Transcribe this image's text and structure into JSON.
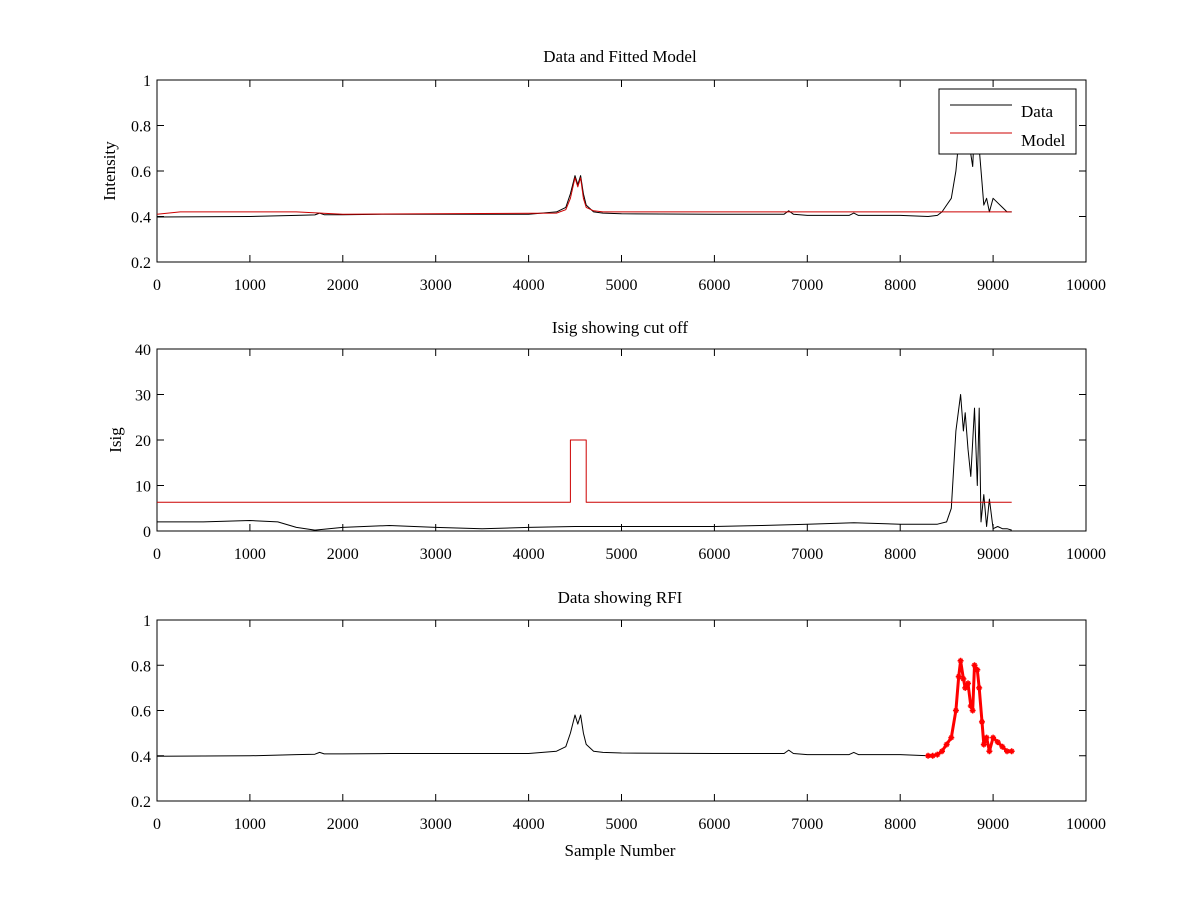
{
  "chart_data": [
    {
      "type": "line",
      "title": "Data and Fitted Model",
      "xlabel": "",
      "ylabel": "Intensity",
      "xlim": [
        0,
        10000
      ],
      "ylim": [
        0.2,
        1
      ],
      "xticks": [
        "0",
        "1000",
        "2000",
        "3000",
        "4000",
        "5000",
        "6000",
        "7000",
        "8000",
        "9000",
        "10000"
      ],
      "yticks": [
        "0.2",
        "0.4",
        "0.6",
        "0.8",
        "1"
      ],
      "grid": false,
      "legend": {
        "position": "top-right",
        "entries": [
          "Data",
          "Model"
        ]
      },
      "series": [
        {
          "name": "Data",
          "color": "#000000",
          "x": [
            0,
            500,
            1000,
            1500,
            1700,
            1750,
            1800,
            2000,
            2500,
            3000,
            3500,
            4000,
            4300,
            4400,
            4450,
            4500,
            4530,
            4560,
            4590,
            4620,
            4700,
            4800,
            5000,
            6000,
            6750,
            6800,
            6850,
            7000,
            7450,
            7500,
            7550,
            8000,
            8300,
            8400,
            8450,
            8500,
            8550,
            8600,
            8650,
            8700,
            8750,
            8780,
            8800,
            8830,
            8850,
            8880,
            8900,
            8930,
            8960,
            9000,
            9050,
            9100,
            9150,
            9200
          ],
          "y": [
            0.398,
            0.399,
            0.4,
            0.405,
            0.407,
            0.415,
            0.408,
            0.408,
            0.41,
            0.41,
            0.41,
            0.41,
            0.42,
            0.44,
            0.5,
            0.58,
            0.54,
            0.58,
            0.5,
            0.45,
            0.42,
            0.415,
            0.412,
            0.41,
            0.41,
            0.425,
            0.41,
            0.405,
            0.405,
            0.415,
            0.405,
            0.405,
            0.4,
            0.405,
            0.42,
            0.45,
            0.48,
            0.6,
            0.82,
            0.74,
            0.7,
            0.62,
            0.8,
            0.78,
            0.7,
            0.55,
            0.45,
            0.48,
            0.42,
            0.48,
            0.46,
            0.44,
            0.42,
            0.42
          ]
        },
        {
          "name": "Model",
          "color": "#cc0000",
          "x": [
            0,
            250,
            1500,
            2000,
            4300,
            4400,
            4450,
            4500,
            4530,
            4560,
            4590,
            4620,
            4700,
            4800,
            5000,
            6000,
            7000,
            8000,
            9200
          ],
          "y": [
            0.41,
            0.42,
            0.42,
            0.41,
            0.415,
            0.43,
            0.48,
            0.57,
            0.53,
            0.57,
            0.48,
            0.44,
            0.425,
            0.42,
            0.42,
            0.42,
            0.42,
            0.42,
            0.42
          ]
        }
      ]
    },
    {
      "type": "line",
      "title": "Isig showing cut off",
      "xlabel": "",
      "ylabel": "Isig",
      "xlim": [
        0,
        10000
      ],
      "ylim": [
        0,
        40
      ],
      "xticks": [
        "0",
        "1000",
        "2000",
        "3000",
        "4000",
        "5000",
        "6000",
        "7000",
        "8000",
        "9000",
        "10000"
      ],
      "yticks": [
        "0",
        "10",
        "20",
        "30",
        "40"
      ],
      "grid": false,
      "series": [
        {
          "name": "",
          "color": "#000000",
          "x": [
            0,
            500,
            1000,
            1300,
            1500,
            1700,
            2000,
            2500,
            3000,
            3500,
            4000,
            4500,
            5000,
            5500,
            6000,
            6500,
            7000,
            7500,
            8000,
            8400,
            8500,
            8550,
            8600,
            8650,
            8680,
            8700,
            8730,
            8760,
            8800,
            8830,
            8850,
            8870,
            8900,
            8930,
            8960,
            9000,
            9050,
            9100,
            9150,
            9200
          ],
          "y": [
            2,
            2,
            2.3,
            2,
            0.8,
            0.2,
            0.8,
            1.2,
            0.8,
            0.5,
            0.8,
            1,
            1,
            1,
            1,
            1.2,
            1.5,
            1.8,
            1.5,
            1.5,
            2,
            5,
            22,
            30,
            22,
            26,
            18,
            12,
            27,
            10,
            27,
            2,
            8,
            1,
            7,
            0.5,
            1,
            0.5,
            0.5,
            0.2
          ]
        },
        {
          "name": "",
          "color": "#cc0000",
          "x": [
            0,
            4450,
            4450,
            4620,
            4620,
            9200
          ],
          "y": [
            6.3,
            6.3,
            20,
            20,
            6.3,
            6.3
          ]
        }
      ]
    },
    {
      "type": "line",
      "title": "Data showing RFI",
      "xlabel": "Sample Number",
      "ylabel": "",
      "xlim": [
        0,
        10000
      ],
      "ylim": [
        0.2,
        1
      ],
      "xticks": [
        "0",
        "1000",
        "2000",
        "3000",
        "4000",
        "5000",
        "6000",
        "7000",
        "8000",
        "9000",
        "10000"
      ],
      "yticks": [
        "0.2",
        "0.4",
        "0.6",
        "0.8",
        "1"
      ],
      "grid": false,
      "series": [
        {
          "name": "",
          "color": "#000000",
          "x": [
            0,
            500,
            1000,
            1500,
            1700,
            1750,
            1800,
            2000,
            2500,
            3000,
            3500,
            4000,
            4300,
            4400,
            4450,
            4500,
            4530,
            4560,
            4590,
            4620,
            4700,
            4800,
            5000,
            6000,
            6750,
            6800,
            6850,
            7000,
            7450,
            7500,
            7550,
            8000,
            8300
          ],
          "y": [
            0.398,
            0.399,
            0.4,
            0.405,
            0.407,
            0.415,
            0.408,
            0.408,
            0.41,
            0.41,
            0.41,
            0.41,
            0.42,
            0.44,
            0.5,
            0.58,
            0.54,
            0.58,
            0.5,
            0.45,
            0.42,
            0.415,
            0.412,
            0.41,
            0.41,
            0.425,
            0.41,
            0.405,
            0.405,
            0.415,
            0.405,
            0.405,
            0.4
          ]
        },
        {
          "name": "",
          "color": "#ff0000",
          "marker": "*",
          "x": [
            8300,
            8350,
            8400,
            8450,
            8500,
            8550,
            8600,
            8630,
            8650,
            8680,
            8700,
            8730,
            8760,
            8780,
            8800,
            8830,
            8850,
            8880,
            8900,
            8930,
            8960,
            9000,
            9050,
            9100,
            9150,
            9200
          ],
          "y": [
            0.4,
            0.4,
            0.405,
            0.42,
            0.45,
            0.48,
            0.6,
            0.75,
            0.82,
            0.74,
            0.7,
            0.72,
            0.62,
            0.6,
            0.8,
            0.78,
            0.7,
            0.55,
            0.45,
            0.48,
            0.42,
            0.48,
            0.46,
            0.44,
            0.42,
            0.42
          ]
        }
      ]
    }
  ]
}
